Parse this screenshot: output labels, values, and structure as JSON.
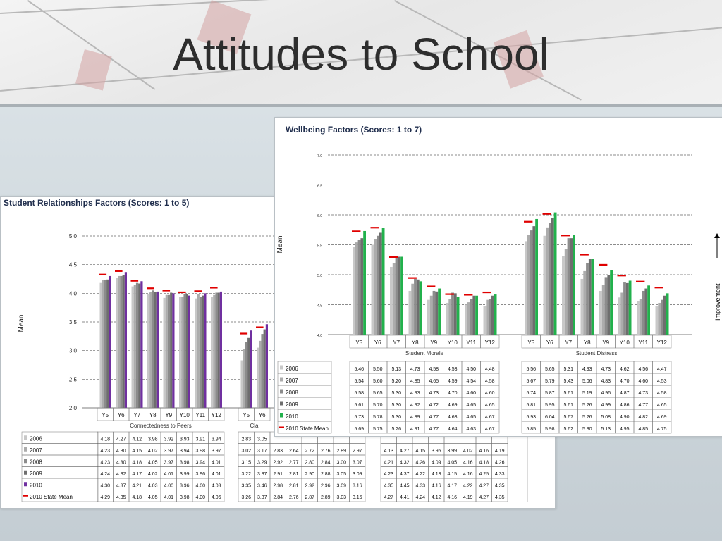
{
  "slide": {
    "title": "Attitudes to School"
  },
  "chart_data": [
    {
      "type": "bar",
      "title": "Student Relationships Factors    (Scores: 1 to 5)",
      "ylabel": "Mean",
      "ylim": [
        2.0,
        5.0
      ],
      "yticks": [
        "5.0",
        "4.5",
        "4.0",
        "3.5",
        "3.0",
        "2.5",
        "2.0"
      ],
      "grid": true,
      "groups": [
        {
          "name": "Connectedness  to Peers",
          "categories": [
            "Y5",
            "Y6",
            "Y7",
            "Y8",
            "Y9",
            "Y10",
            "Y11",
            "Y12"
          ]
        },
        {
          "name": "Cla",
          "categories": [
            "Y5",
            "Y6"
          ]
        }
      ],
      "series": [
        {
          "name": "2006",
          "color": "#c8c8c8",
          "values": [
            4.18,
            4.27,
            4.12,
            3.98,
            3.92,
            3.93,
            3.91,
            3.94,
            2.83,
            3.05
          ],
          "table": [
            "4.18",
            "4.27",
            "4.12",
            "3.98",
            "3.92",
            "3.93",
            "3.91",
            "3.94",
            "2.83",
            "3.05",
            "",
            "",
            "",
            "",
            "",
            "",
            "",
            "",
            "",
            "",
            "",
            "",
            "",
            "",
            ""
          ]
        },
        {
          "name": "2007",
          "color": "#acacac",
          "values": [
            4.23,
            4.3,
            4.15,
            4.02,
            3.97,
            3.94,
            3.98,
            3.97,
            3.02,
            3.17
          ],
          "table": [
            "4.23",
            "4.30",
            "4.15",
            "4.02",
            "3.97",
            "3.94",
            "3.98",
            "3.97",
            "3.02",
            "3.17",
            "2.83",
            "2.64",
            "2.72",
            "2.76",
            "2.89",
            "2.97",
            "",
            "4.13",
            "4.27",
            "4.15",
            "3.95",
            "3.99",
            "4.02",
            "4.16",
            "4.19"
          ]
        },
        {
          "name": "2008",
          "color": "#8c8c8c",
          "values": [
            4.23,
            4.3,
            4.18,
            4.05,
            3.97,
            3.98,
            3.94,
            4.01,
            3.15,
            3.29
          ],
          "table": [
            "4.23",
            "4.30",
            "4.18",
            "4.05",
            "3.97",
            "3.98",
            "3.94",
            "4.01",
            "3.15",
            "3.29",
            "2.92",
            "2.77",
            "2.80",
            "2.84",
            "3.00",
            "3.07",
            "",
            "4.21",
            "4.32",
            "4.26",
            "4.09",
            "4.05",
            "4.16",
            "4.18",
            "4.26"
          ]
        },
        {
          "name": "2009",
          "color": "#6e6e6e",
          "values": [
            4.24,
            4.32,
            4.17,
            4.02,
            4.01,
            3.99,
            3.96,
            4.01,
            3.22,
            3.37
          ],
          "table": [
            "4.24",
            "4.32",
            "4.17",
            "4.02",
            "4.01",
            "3.99",
            "3.96",
            "4.01",
            "3.22",
            "3.37",
            "2.91",
            "2.81",
            "2.90",
            "2.88",
            "3.05",
            "3.09",
            "",
            "4.23",
            "4.37",
            "4.22",
            "4.13",
            "4.15",
            "4.16",
            "4.25",
            "4.33"
          ]
        },
        {
          "name": "2010",
          "color": "#7030a0",
          "values": [
            4.3,
            4.37,
            4.21,
            4.03,
            4.0,
            3.96,
            4.0,
            4.03,
            3.35,
            3.46
          ],
          "table": [
            "4.30",
            "4.37",
            "4.21",
            "4.03",
            "4.00",
            "3.96",
            "4.00",
            "4.03",
            "3.35",
            "3.46",
            "2.98",
            "2.81",
            "2.92",
            "2.96",
            "3.09",
            "3.16",
            "",
            "4.35",
            "4.45",
            "4.33",
            "4.16",
            "4.17",
            "4.22",
            "4.27",
            "4.35"
          ]
        },
        {
          "name": "2010 State Mean",
          "color": "#e00000",
          "values": [
            4.29,
            4.35,
            4.18,
            4.05,
            4.01,
            3.98,
            4.0,
            4.06,
            3.26,
            3.37
          ],
          "table": [
            "4.29",
            "4.35",
            "4.18",
            "4.05",
            "4.01",
            "3.98",
            "4.00",
            "4.06",
            "3.26",
            "3.37",
            "2.84",
            "2.76",
            "2.87",
            "2.89",
            "3.03",
            "3.16",
            "",
            "4.27",
            "4.41",
            "4.24",
            "4.12",
            "4.16",
            "4.19",
            "4.27",
            "4.35"
          ]
        }
      ]
    },
    {
      "type": "bar",
      "title": "Wellbeing Factors    (Scores: 1 to 7)",
      "ylabel": "Mean",
      "ylim": [
        4.0,
        7.0
      ],
      "yticks": [
        "7.0",
        "6.5",
        "6.0",
        "5.5",
        "5.0",
        "4.5",
        "4.0"
      ],
      "grid": true,
      "side_label": "Improvement",
      "groups": [
        {
          "name": "Student Morale",
          "categories": [
            "Y5",
            "Y6",
            "Y7",
            "Y8",
            "Y9",
            "Y10",
            "Y11",
            "Y12"
          ]
        },
        {
          "name": "Student Distress",
          "categories": [
            "Y5",
            "Y6",
            "Y7",
            "Y8",
            "Y9",
            "Y10",
            "Y11",
            "Y12"
          ]
        }
      ],
      "series": [
        {
          "name": "2006",
          "color": "#c8c8c8",
          "values": [
            5.46,
            5.5,
            5.13,
            4.73,
            4.58,
            4.53,
            4.5,
            4.48,
            5.56,
            5.65,
            5.31,
            4.93,
            4.73,
            4.62,
            4.56,
            4.47
          ]
        },
        {
          "name": "2007",
          "color": "#acacac",
          "values": [
            5.54,
            5.6,
            5.2,
            4.85,
            4.65,
            4.59,
            4.54,
            4.58,
            5.67,
            5.79,
            5.43,
            5.06,
            4.83,
            4.7,
            4.6,
            4.53
          ]
        },
        {
          "name": "2008",
          "color": "#8c8c8c",
          "values": [
            5.58,
            5.65,
            5.3,
            4.93,
            4.73,
            4.7,
            4.6,
            4.6,
            5.74,
            5.87,
            5.61,
            5.19,
            4.96,
            4.87,
            4.73,
            4.58
          ]
        },
        {
          "name": "2009",
          "color": "#6e6e6e",
          "values": [
            5.61,
            5.7,
            5.3,
            4.92,
            4.72,
            4.69,
            4.65,
            4.65,
            5.81,
            5.95,
            5.61,
            5.26,
            4.99,
            4.86,
            4.77,
            4.65
          ]
        },
        {
          "name": "2010",
          "color": "#22b14c",
          "values": [
            5.73,
            5.78,
            5.3,
            4.89,
            4.77,
            4.63,
            4.65,
            4.67,
            5.93,
            6.04,
            5.67,
            5.26,
            5.08,
            4.9,
            4.82,
            4.69
          ]
        },
        {
          "name": "2010 State Mean",
          "color": "#e00000",
          "values": [
            5.69,
            5.75,
            5.26,
            4.91,
            4.77,
            4.64,
            4.63,
            4.67,
            5.85,
            5.98,
            5.62,
            5.3,
            5.13,
            4.95,
            4.85,
            4.75
          ]
        }
      ]
    }
  ]
}
